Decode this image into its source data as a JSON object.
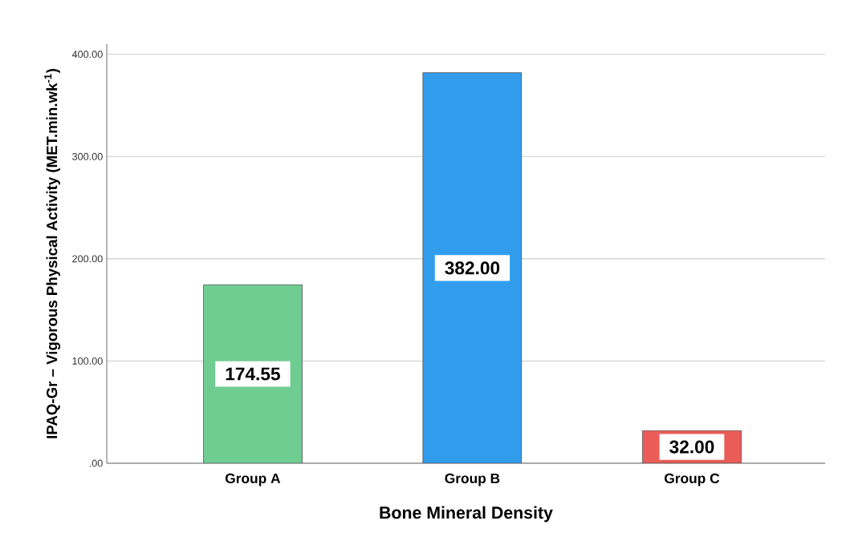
{
  "chart_data": {
    "type": "bar",
    "xlabel": "Bone Mineral Density",
    "ylabel": "IPAQ-Gr – Vigorous Physical Activity (MET.min.wk$^{-1}$)",
    "categories": [
      "Group A",
      "Group B",
      "Group C"
    ],
    "values": [
      174.55,
      382.0,
      32.0
    ],
    "value_labels": [
      "174.55",
      "382.00",
      "32.00"
    ],
    "colors": [
      "#70cd92",
      "#339ded",
      "#e95c57"
    ],
    "ylim": [
      0,
      410
    ],
    "yticks": [
      {
        "value": 0,
        "label": ".00"
      },
      {
        "value": 100,
        "label": "100.00"
      },
      {
        "value": 200,
        "label": "200.00"
      },
      {
        "value": 300,
        "label": "300.00"
      },
      {
        "value": 400,
        "label": "400.00"
      }
    ],
    "grid": "y"
  }
}
